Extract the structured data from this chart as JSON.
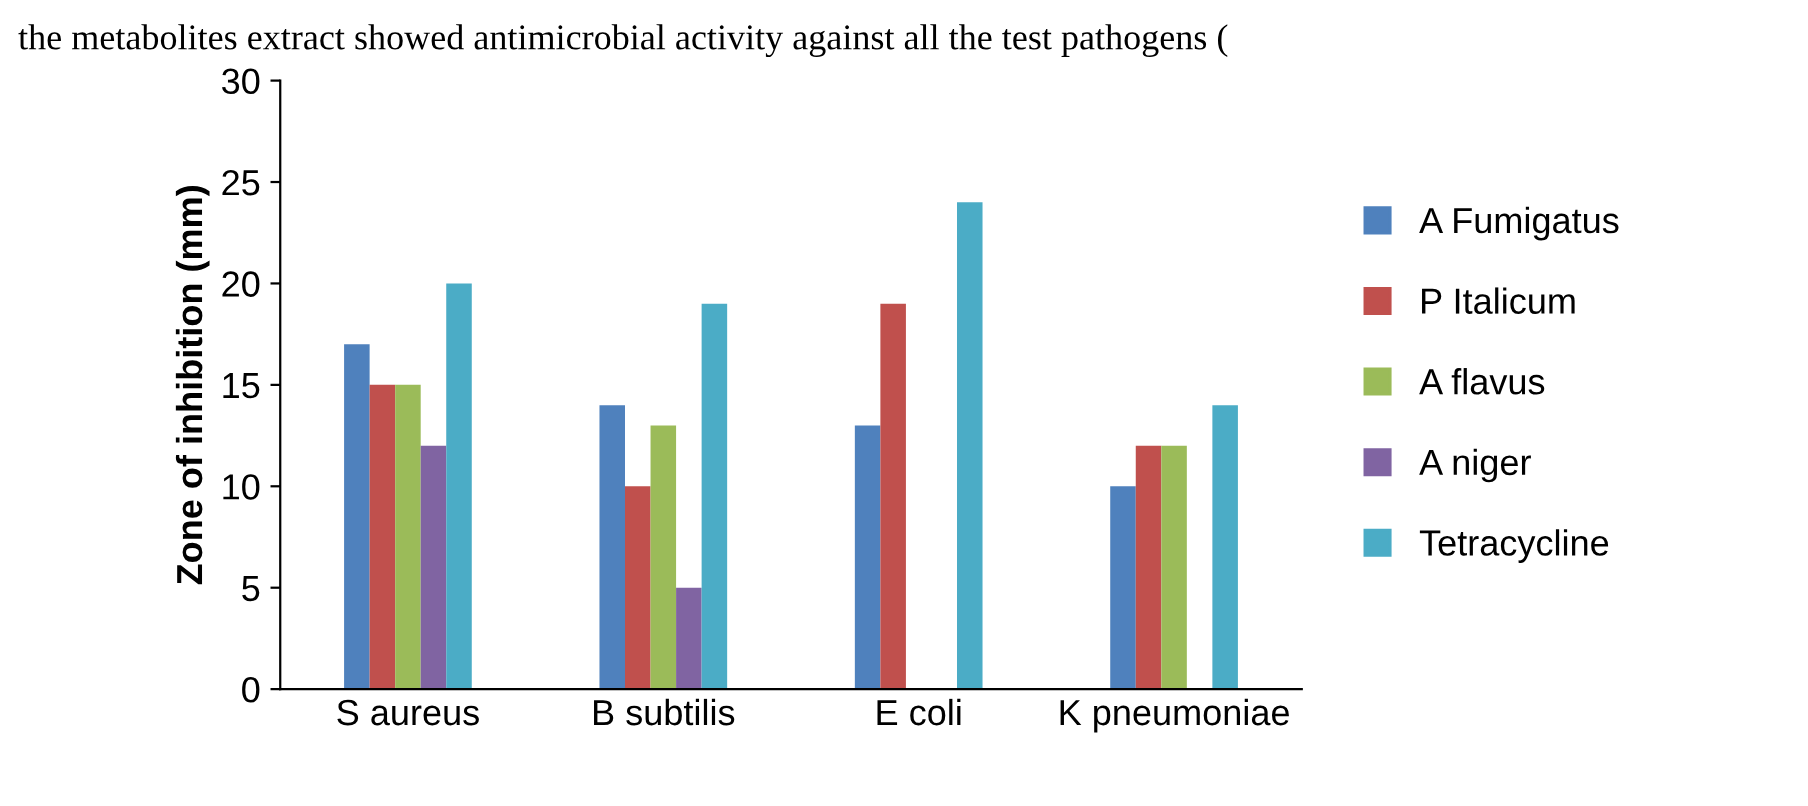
{
  "chart_data": {
    "type": "bar",
    "annotations": [
      "the metabolites extract showed antimicrobial activity against all the test pathogens ("
    ],
    "ylabel": "Zone of inhibition (mm)",
    "categories": [
      "S aureus",
      "B subtilis",
      "E coli",
      "K pneumoniae"
    ],
    "series": [
      {
        "name": "A Fumigatus",
        "color": "#4f81bd",
        "values": [
          17,
          14,
          13,
          10
        ]
      },
      {
        "name": "P Italicum",
        "color": "#c0504d",
        "values": [
          15,
          10,
          19,
          12
        ]
      },
      {
        "name": "A flavus",
        "color": "#9bbb59",
        "values": [
          15,
          13,
          null,
          12
        ]
      },
      {
        "name": "A niger",
        "color": "#8064a2",
        "values": [
          12,
          5,
          null,
          null
        ]
      },
      {
        "name": "Tetracycline",
        "color": "#4bacc6",
        "values": [
          20,
          19,
          24,
          14
        ]
      }
    ],
    "ylim": [
      0,
      30
    ],
    "yticks": [
      0,
      5,
      10,
      15,
      20,
      25,
      30
    ],
    "grid": false,
    "legend": "right"
  }
}
